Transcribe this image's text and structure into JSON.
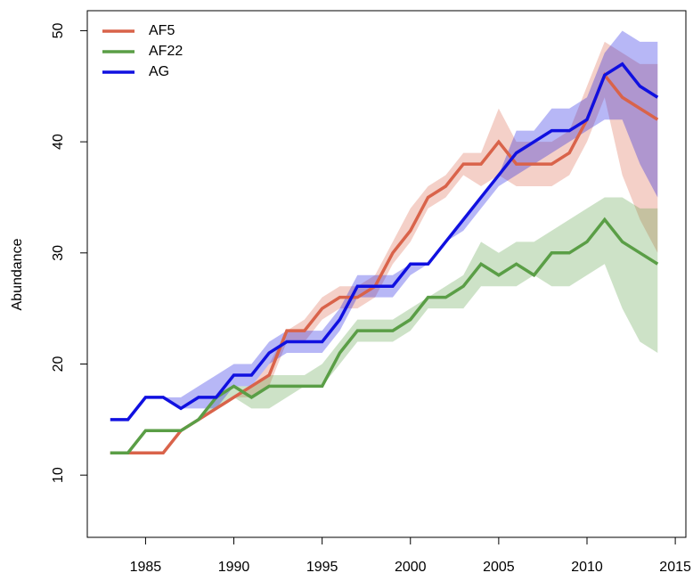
{
  "chart_data": {
    "type": "line",
    "y_label": "Abundance",
    "x": [
      1983,
      1984,
      1985,
      1986,
      1987,
      1988,
      1989,
      1990,
      1991,
      1992,
      1993,
      1994,
      1995,
      1996,
      1997,
      1998,
      1999,
      2000,
      2001,
      2002,
      2003,
      2004,
      2005,
      2006,
      2007,
      2008,
      2009,
      2010,
      2011,
      2012,
      2013,
      2014
    ],
    "series": [
      {
        "name": "AF5",
        "color": "#d9634a",
        "values": [
          12,
          12,
          12,
          12,
          14,
          15,
          16,
          17,
          18,
          19,
          23,
          23,
          25,
          26,
          26,
          27,
          30,
          32,
          35,
          36,
          38,
          38,
          40,
          38,
          38,
          38,
          39,
          42,
          46,
          44,
          43,
          42
        ],
        "upper": [
          12,
          12,
          12,
          12,
          14,
          15,
          16,
          17,
          18,
          20,
          23,
          24,
          26,
          27,
          27,
          28,
          31,
          34,
          36,
          37,
          39,
          39,
          43,
          40,
          40,
          40,
          41,
          45,
          49,
          48,
          47,
          47
        ],
        "lower": [
          12,
          12,
          12,
          12,
          14,
          15,
          16,
          17,
          17,
          18,
          22,
          22,
          24,
          25,
          25,
          26,
          29,
          31,
          34,
          35,
          37,
          36,
          37,
          36,
          36,
          36,
          37,
          40,
          44,
          37,
          33,
          30
        ]
      },
      {
        "name": "AF22",
        "color": "#5a9e46",
        "values": [
          12,
          12,
          14,
          14,
          14,
          15,
          17,
          18,
          17,
          18,
          18,
          18,
          18,
          21,
          23,
          23,
          23,
          24,
          26,
          26,
          27,
          29,
          28,
          29,
          28,
          30,
          30,
          31,
          33,
          31,
          30,
          29
        ],
        "upper": [
          12,
          12,
          14,
          14,
          14,
          15,
          17,
          18,
          18,
          19,
          19,
          19,
          20,
          22,
          24,
          24,
          24,
          25,
          26,
          27,
          28,
          31,
          30,
          31,
          31,
          32,
          33,
          34,
          35,
          35,
          34,
          34
        ],
        "lower": [
          12,
          12,
          14,
          14,
          14,
          15,
          16,
          17,
          16,
          16,
          17,
          18,
          18,
          20,
          22,
          22,
          22,
          23,
          25,
          25,
          25,
          27,
          27,
          27,
          28,
          27,
          27,
          28,
          29,
          25,
          22,
          21
        ]
      },
      {
        "name": "AG",
        "color": "#1010e0",
        "values": [
          15,
          15,
          17,
          17,
          16,
          17,
          17,
          19,
          19,
          21,
          22,
          22,
          22,
          24,
          27,
          27,
          27,
          29,
          29,
          31,
          33,
          35,
          37,
          39,
          40,
          41,
          41,
          42,
          46,
          47,
          45,
          44
        ],
        "upper": [
          15,
          15,
          17,
          17,
          17,
          18,
          19,
          20,
          20,
          22,
          23,
          23,
          23,
          25,
          28,
          28,
          28,
          29,
          29,
          31,
          33,
          35,
          37,
          41,
          41,
          43,
          43,
          44,
          48,
          50,
          49,
          49
        ],
        "lower": [
          15,
          15,
          17,
          17,
          16,
          16,
          16,
          18,
          18,
          20,
          21,
          21,
          21,
          23,
          26,
          26,
          26,
          28,
          29,
          31,
          32,
          34,
          36,
          37,
          38,
          39,
          40,
          41,
          42,
          42,
          38,
          35
        ]
      }
    ],
    "xlim": [
      1981.7,
      2015.6
    ],
    "xticks": [
      1985,
      1990,
      1995,
      2000,
      2005,
      2010,
      2015
    ],
    "ylim": [
      4.4,
      51.8
    ],
    "yticks": [
      10,
      20,
      30,
      40,
      50
    ],
    "band_opacity": 0.3,
    "legend": "top-left",
    "grid": false
  }
}
